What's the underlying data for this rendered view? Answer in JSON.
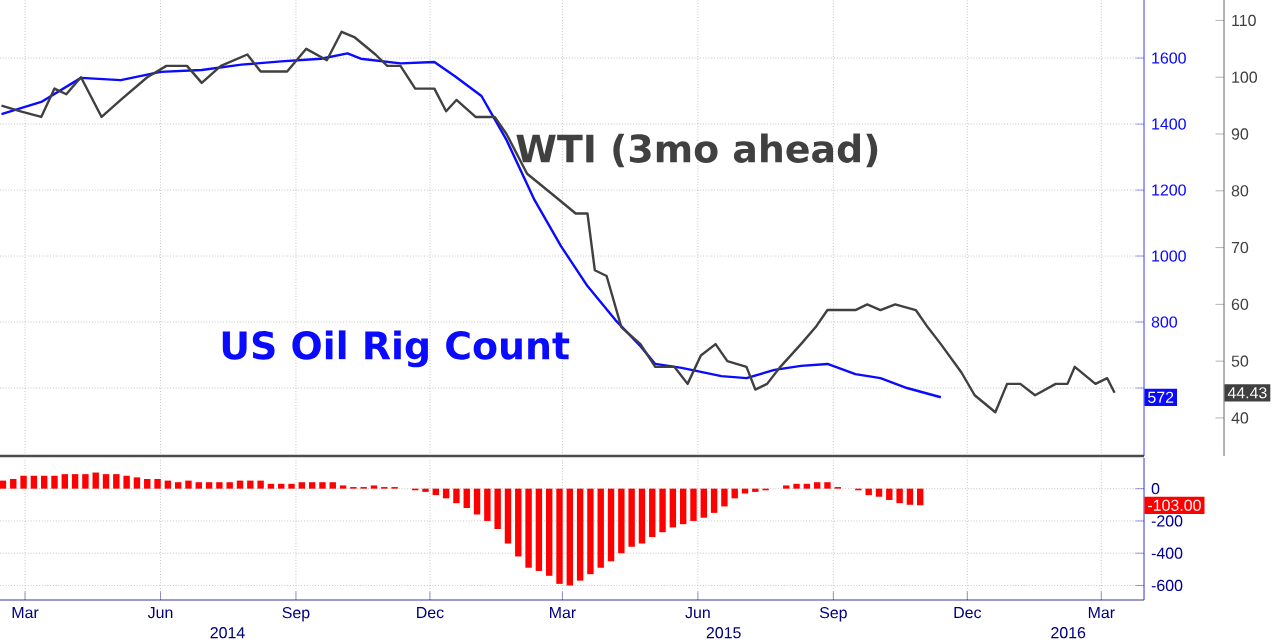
{
  "chart_data": [
    {
      "type": "line",
      "xlim": [
        "2014-02-26",
        "2016-04-13"
      ],
      "xticks": [
        {
          "value": "2014-03-15",
          "label": null
        },
        {
          "value": "2014-06-15",
          "label": null
        },
        {
          "value": "2014-09-15",
          "label": null
        },
        {
          "value": "2014-12-15",
          "label": null
        },
        {
          "value": "2015-03-15",
          "label": null
        },
        {
          "value": "2015-06-15",
          "label": null
        },
        {
          "value": "2015-09-15",
          "label": null
        },
        {
          "value": "2015-12-15",
          "label": null
        },
        {
          "value": "2016-03-15",
          "label": null
        }
      ],
      "ylim": [
        394,
        1776
      ],
      "yticks": [
        {
          "value": 600,
          "label": null
        },
        800,
        1000,
        1200,
        1400,
        1600
      ],
      "y2lim": [
        33.3,
        113.6
      ],
      "y2ticks": [
        40,
        50,
        60,
        70,
        80,
        90,
        100,
        110
      ],
      "grid": true,
      "tick_labels": "y",
      "annotations": [
        "572",
        "44.43"
      ],
      "series": [
        {
          "name": "US Oil Rig Count",
          "color": "#0a0aff",
          "x": [
            "2014-02-27",
            "2014-03-26",
            "2014-04-22",
            "2014-05-19",
            "2014-06-15",
            "2014-07-13",
            "2014-08-09",
            "2014-09-05",
            "2014-10-02",
            "2014-10-20",
            "2014-10-29",
            "2014-11-25",
            "2014-12-18",
            "2015-01-01",
            "2015-01-19",
            "2015-02-05",
            "2015-02-24",
            "2015-03-14",
            "2015-04-01",
            "2015-04-20",
            "2015-05-07",
            "2015-05-17",
            "2015-06-04",
            "2015-07-01",
            "2015-07-18",
            "2015-08-06",
            "2015-08-24",
            "2015-09-11",
            "2015-09-30",
            "2015-10-17",
            "2015-11-04",
            "2015-11-27"
          ],
          "values": [
            1430,
            1467,
            1540,
            1533,
            1558,
            1564,
            1580,
            1590,
            1598,
            1614,
            1598,
            1584,
            1588,
            1545,
            1485,
            1352,
            1170,
            1030,
            909,
            806,
            727,
            673,
            661,
            636,
            630,
            655,
            667,
            673,
            642,
            630,
            600,
            572
          ]
        },
        {
          "name": "WTI (3mo ahead)",
          "color": "#404040",
          "axis": "y2",
          "x": [
            "2014-02-27",
            "2014-03-12",
            "2014-03-26",
            "2014-04-04",
            "2014-04-12",
            "2014-04-22",
            "2014-05-06",
            "2014-05-19",
            "2014-06-06",
            "2014-06-19",
            "2014-07-03",
            "2014-07-13",
            "2014-07-26",
            "2014-08-13",
            "2014-08-22",
            "2014-09-09",
            "2014-09-22",
            "2014-10-06",
            "2014-10-16",
            "2014-10-25",
            "2014-11-08",
            "2014-11-16",
            "2014-11-25",
            "2014-12-05",
            "2014-12-18",
            "2014-12-26",
            "2015-01-02",
            "2015-01-15",
            "2015-01-28",
            "2015-02-05",
            "2015-02-19",
            "2015-03-10",
            "2015-03-24",
            "2015-04-01",
            "2015-04-06",
            "2015-04-14",
            "2015-04-24",
            "2015-05-07",
            "2015-05-17",
            "2015-05-30",
            "2015-06-08",
            "2015-06-17",
            "2015-06-27",
            "2015-07-05",
            "2015-07-18",
            "2015-07-24",
            "2015-08-01",
            "2015-08-10",
            "2015-08-24",
            "2015-09-03",
            "2015-09-11",
            "2015-09-30",
            "2015-10-08",
            "2015-10-17",
            "2015-10-27",
            "2015-11-10",
            "2015-11-18",
            "2015-11-27",
            "2015-12-11",
            "2015-12-20",
            "2016-01-03",
            "2016-01-11",
            "2016-01-20",
            "2016-01-30",
            "2016-02-13",
            "2016-02-21",
            "2016-02-26",
            "2016-03-11",
            "2016-03-19",
            "2016-03-24"
          ],
          "values": [
            95,
            94,
            93,
            98,
            97,
            100,
            93,
            96,
            100,
            102,
            102,
            99,
            102,
            104,
            101,
            101,
            105,
            103,
            108,
            107,
            104,
            102,
            102,
            98,
            98,
            94,
            96,
            93,
            93,
            90,
            83,
            79,
            76,
            76,
            66,
            65,
            56,
            53,
            49,
            49,
            46,
            51,
            53,
            50,
            49,
            45,
            46,
            49,
            53,
            56,
            59,
            59,
            60,
            59,
            60,
            59,
            56,
            53,
            48,
            44,
            41,
            46,
            46,
            44,
            46,
            46,
            49,
            46,
            47,
            44.43
          ]
        }
      ]
    },
    {
      "type": "bar",
      "color": "#ff0000",
      "xlim": [
        "2014-02-26",
        "2016-04-13"
      ],
      "xticks": [
        {
          "value": "2014-03-15",
          "label": "Mar"
        },
        {
          "value": "2014-06-15",
          "label": "Jun"
        },
        {
          "value": "2014-09-15",
          "label": "Sep"
        },
        {
          "value": "2014-12-15",
          "label": "Dec"
        },
        {
          "value": "2015-03-15",
          "label": "Mar"
        },
        {
          "value": "2015-06-15",
          "label": "Jun"
        },
        {
          "value": "2015-09-15",
          "label": "Sep"
        },
        {
          "value": "2015-12-15",
          "label": "Dec"
        },
        {
          "value": "2016-03-15",
          "label": "Mar"
        }
      ],
      "ylim": [
        -690,
        190
      ],
      "yticks": [
        -600,
        -400,
        -200,
        0
      ],
      "grid": true,
      "annotations": [
        "-103.00",
        "2014",
        "2015",
        "2016"
      ],
      "x": [
        "2014-02-28",
        "2014-03-07",
        "2014-03-14",
        "2014-03-21",
        "2014-03-28",
        "2014-04-04",
        "2014-04-11",
        "2014-04-18",
        "2014-04-25",
        "2014-05-02",
        "2014-05-09",
        "2014-05-16",
        "2014-05-23",
        "2014-05-30",
        "2014-06-06",
        "2014-06-13",
        "2014-06-20",
        "2014-06-27",
        "2014-07-04",
        "2014-07-11",
        "2014-07-18",
        "2014-07-25",
        "2014-08-01",
        "2014-08-08",
        "2014-08-15",
        "2014-08-22",
        "2014-08-29",
        "2014-09-05",
        "2014-09-12",
        "2014-09-19",
        "2014-09-26",
        "2014-10-03",
        "2014-10-10",
        "2014-10-17",
        "2014-10-24",
        "2014-10-31",
        "2014-11-07",
        "2014-11-14",
        "2014-11-21",
        "2014-11-28",
        "2014-12-05",
        "2014-12-12",
        "2014-12-19",
        "2014-12-26",
        "2015-01-02",
        "2015-01-09",
        "2015-01-16",
        "2015-01-23",
        "2015-01-30",
        "2015-02-06",
        "2015-02-13",
        "2015-02-20",
        "2015-02-27",
        "2015-03-06",
        "2015-03-13",
        "2015-03-20",
        "2015-03-27",
        "2015-04-03",
        "2015-04-10",
        "2015-04-17",
        "2015-04-24",
        "2015-05-01",
        "2015-05-08",
        "2015-05-15",
        "2015-05-22",
        "2015-05-29",
        "2015-06-05",
        "2015-06-12",
        "2015-06-19",
        "2015-06-26",
        "2015-07-03",
        "2015-07-10",
        "2015-07-17",
        "2015-07-24",
        "2015-07-31",
        "2015-08-07",
        "2015-08-14",
        "2015-08-21",
        "2015-08-28",
        "2015-09-04",
        "2015-09-11",
        "2015-09-18",
        "2015-09-25",
        "2015-10-02",
        "2015-10-09",
        "2015-10-16",
        "2015-10-23",
        "2015-10-30",
        "2015-11-06",
        "2015-11-13"
      ],
      "values": [
        50,
        60,
        80,
        80,
        80,
        80,
        90,
        90,
        90,
        100,
        90,
        90,
        80,
        70,
        60,
        60,
        50,
        40,
        50,
        40,
        40,
        40,
        40,
        50,
        50,
        50,
        30,
        30,
        30,
        40,
        40,
        40,
        40,
        20,
        10,
        10,
        20,
        10,
        10,
        0,
        -10,
        -20,
        -40,
        -60,
        -90,
        -120,
        -160,
        -200,
        -250,
        -340,
        -420,
        -490,
        -510,
        -540,
        -590,
        -600,
        -570,
        -530,
        -490,
        -450,
        -400,
        -360,
        -340,
        -300,
        -270,
        -240,
        -220,
        -200,
        -180,
        -150,
        -110,
        -60,
        -30,
        -20,
        -10,
        0,
        20,
        30,
        30,
        40,
        40,
        10,
        0,
        -10,
        -40,
        -50,
        -70,
        -90,
        -100,
        -103
      ]
    }
  ]
}
